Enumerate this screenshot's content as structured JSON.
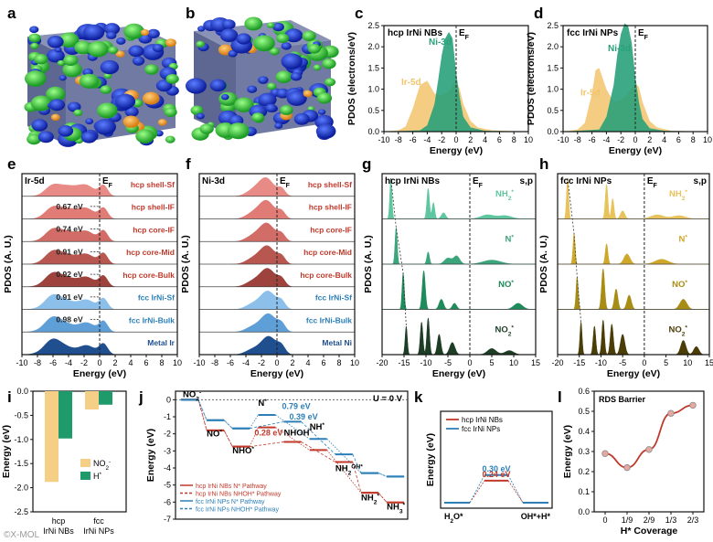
{
  "panel_letters": [
    "a",
    "b",
    "c",
    "d",
    "e",
    "f",
    "g",
    "h",
    "i",
    "j",
    "k",
    "l"
  ],
  "colors": {
    "ir5d": "#f2c46d",
    "ni3d": "#2aa17a",
    "red": "#c0392b",
    "blue": "#2c7fb8",
    "olive": "#8a7a10",
    "dkgreen": "#1d5e35"
  },
  "chart_data": [
    {
      "id": "c",
      "type": "area",
      "title": "hcp IrNi NBs",
      "ef_label": "E",
      "ef_sub": "F",
      "xlabel": "Energy (eV)",
      "ylabel": "PDOS (electrons/eV)",
      "xlim": [
        -10,
        10
      ],
      "ylim": [
        0,
        2.5
      ],
      "xticks": [
        -10,
        -8,
        -6,
        -4,
        -2,
        0,
        2,
        4,
        6,
        8,
        10
      ],
      "yticks": [
        0,
        0.5,
        1.0,
        1.5,
        2.0,
        2.5
      ],
      "ytick_labels": [
        "0.0",
        "0.5",
        "1.0",
        "1.5",
        "2.0",
        "2.5"
      ],
      "series": [
        {
          "name": "Ir-5d",
          "color": "#f2c46d",
          "x": [
            -10,
            -8,
            -7,
            -6,
            -5,
            -4,
            -3,
            -2,
            -1,
            0,
            0.5,
            1,
            2,
            3,
            5,
            10
          ],
          "y": [
            0,
            0.03,
            0.12,
            0.55,
            1.1,
            1.2,
            0.9,
            0.85,
            0.95,
            1.2,
            1.0,
            0.65,
            0.25,
            0.1,
            0.03,
            0
          ]
        },
        {
          "name": "Ni-3d",
          "color": "#2aa17a",
          "x": [
            -10,
            -5,
            -4,
            -3,
            -2.5,
            -2,
            -1.5,
            -1,
            -0.5,
            0,
            0.5,
            1,
            2,
            4,
            10
          ],
          "y": [
            0,
            0.03,
            0.15,
            0.65,
            1.2,
            1.8,
            2.2,
            2.35,
            2.2,
            1.4,
            0.8,
            0.35,
            0.1,
            0.02,
            0
          ]
        }
      ],
      "series_labels": [
        {
          "text": "Ni-3d",
          "x": -3.8,
          "y": 2.05
        },
        {
          "text": "Ir-5d",
          "x": -7.6,
          "y": 1.1
        }
      ]
    },
    {
      "id": "d",
      "type": "area",
      "title": "fcc IrNi NPs",
      "ef_label": "E",
      "ef_sub": "F",
      "xlabel": "Energy (eV)",
      "ylabel": "PDOS (electrons/eV)",
      "xlim": [
        -10,
        10
      ],
      "ylim": [
        0,
        2.5
      ],
      "xticks": [
        -10,
        -8,
        -6,
        -4,
        -2,
        0,
        2,
        4,
        6,
        8,
        10
      ],
      "yticks": [
        0,
        0.5,
        1.0,
        1.5,
        2.0,
        2.5
      ],
      "ytick_labels": [
        "0.0",
        "0.5",
        "1.0",
        "1.5",
        "2.0",
        "2.5"
      ],
      "series": [
        {
          "name": "Ir-5d",
          "color": "#f2c46d",
          "x": [
            -10,
            -8,
            -7,
            -6,
            -5.5,
            -5,
            -4,
            -3,
            -2,
            -1,
            0,
            0.5,
            1,
            2,
            3,
            5,
            10
          ],
          "y": [
            0,
            0.05,
            0.2,
            0.9,
            1.45,
            1.5,
            1.0,
            0.7,
            0.75,
            0.9,
            1.15,
            1.05,
            0.7,
            0.25,
            0.1,
            0.02,
            0
          ]
        },
        {
          "name": "Ni-3d",
          "color": "#2aa17a",
          "x": [
            -10,
            -5,
            -4,
            -3,
            -2.5,
            -2,
            -1.5,
            -1,
            -0.5,
            0,
            0.5,
            1,
            2,
            4,
            10
          ],
          "y": [
            0,
            0.05,
            0.35,
            1.1,
            1.8,
            2.3,
            2.55,
            2.5,
            2.1,
            1.3,
            0.7,
            0.3,
            0.08,
            0.02,
            0
          ]
        }
      ],
      "series_labels": [
        {
          "text": "Ni-3d",
          "x": -3.8,
          "y": 1.9
        },
        {
          "text": "Ir-5d",
          "x": -7.6,
          "y": 0.85
        }
      ]
    },
    {
      "id": "e",
      "type": "area",
      "title": "Ir-5d",
      "ef_label": "E",
      "ef_sub": "F",
      "xlabel": "Energy (eV)",
      "ylabel": "PDOS (A. U.)",
      "xlim": [
        -10,
        10
      ],
      "xticks": [
        -10,
        -8,
        -6,
        -4,
        -2,
        0,
        2,
        4,
        6,
        8,
        10
      ],
      "series": [
        {
          "name": "hcp shell-Sf",
          "color": "#e88a85"
        },
        {
          "name": "hcp shell-IF",
          "color": "#e07b76"
        },
        {
          "name": "hcp core-IF",
          "color": "#d26c66"
        },
        {
          "name": "hcp core-Mid",
          "color": "#b85650"
        },
        {
          "name": "hcp core-Bulk",
          "color": "#9e423e"
        },
        {
          "name": "fcc IrNi-Sf",
          "color": "#8cc0ea"
        },
        {
          "name": "fcc IrNi-Bulk",
          "color": "#5f9fd8"
        },
        {
          "name": "Metal Ir",
          "color": "#1f4f8e"
        }
      ],
      "gap_labels": [
        "0.67 eV",
        "0.74 eV",
        "0.91 eV",
        "0.92 eV",
        "0.91 eV",
        "0.98 eV"
      ]
    },
    {
      "id": "f",
      "type": "area",
      "title": "Ni-3d",
      "ef_label": "E",
      "ef_sub": "F",
      "xlabel": "Energy (eV)",
      "ylabel": "PDOS (A. U.)",
      "xlim": [
        -10,
        10
      ],
      "xticks": [
        -10,
        -8,
        -6,
        -4,
        -2,
        0,
        2,
        4,
        6,
        8,
        10
      ],
      "series": [
        {
          "name": "hcp shell-Sf",
          "color": "#e88a85"
        },
        {
          "name": "hcp shell-IF",
          "color": "#e07b76"
        },
        {
          "name": "hcp core-IF",
          "color": "#d26c66"
        },
        {
          "name": "hcp core-Mid",
          "color": "#b85650"
        },
        {
          "name": "hcp core-Bulk",
          "color": "#9e423e"
        },
        {
          "name": "fcc IrNi-Sf",
          "color": "#8cc0ea"
        },
        {
          "name": "fcc IrNi-Bulk",
          "color": "#5f9fd8"
        },
        {
          "name": "Metal Ni",
          "color": "#1f4f8e"
        }
      ]
    },
    {
      "id": "g",
      "type": "line",
      "title": "hcp IrNi NBs",
      "ef_label": "E",
      "ef_sub": "F",
      "corner_label": "s,p",
      "xlabel": "Energy (eV)",
      "ylabel": "PDOS (A. U.)",
      "xlim": [
        -20,
        15
      ],
      "xticks": [
        -20,
        -15,
        -10,
        -5,
        0,
        5,
        10,
        15
      ],
      "series": [
        {
          "name": "NH",
          "sub": "2",
          "sup": "*",
          "color": "#5fc79f"
        },
        {
          "name": "N",
          "sub": "",
          "sup": "*",
          "color": "#3ba57c"
        },
        {
          "name": "NO",
          "sub": "",
          "sup": "*",
          "color": "#1f8a5a"
        },
        {
          "name": "NO",
          "sub": "2",
          "sup": "*",
          "color": "#1d3d24"
        }
      ]
    },
    {
      "id": "h",
      "type": "line",
      "title": "fcc IrNi NPs",
      "ef_label": "E",
      "ef_sub": "F",
      "corner_label": "s,p",
      "xlabel": "Energy (eV)",
      "ylabel": "PDOS (A. U.)",
      "xlim": [
        -20,
        15
      ],
      "xticks": [
        -20,
        -15,
        -10,
        -5,
        0,
        5,
        10,
        15
      ],
      "series": [
        {
          "name": "NH",
          "sub": "2",
          "sup": "*",
          "color": "#e8c25a"
        },
        {
          "name": "N",
          "sub": "",
          "sup": "*",
          "color": "#cfa82a"
        },
        {
          "name": "NO",
          "sub": "",
          "sup": "*",
          "color": "#a88d15"
        },
        {
          "name": "NO",
          "sub": "2",
          "sup": "*",
          "color": "#4a3d08"
        }
      ]
    },
    {
      "id": "i",
      "type": "bar",
      "categories": [
        "hcp IrNi NBs",
        "fcc IrNi NPs"
      ],
      "category_lines": [
        [
          "hcp",
          "IrNi NBs"
        ],
        [
          "fcc",
          "IrNi NPs"
        ]
      ],
      "series": [
        {
          "name": "NO",
          "sub": "2",
          "sup": "-",
          "color": "#f6cf86",
          "values": [
            -1.88,
            -0.38
          ]
        },
        {
          "name": "H",
          "sub": "",
          "sup": "*",
          "color": "#1f9a6a",
          "values": [
            -0.98,
            -0.28
          ]
        }
      ],
      "ylabel": "Energy (eV)",
      "ylim": [
        -2.5,
        0
      ],
      "yticks": [
        0,
        -0.5,
        -1.0,
        -1.5,
        -2.0,
        -2.5
      ],
      "ytick_labels": [
        "0.0",
        "-0.5",
        "-1.0",
        "-1.5",
        "-2.0",
        "-2.5"
      ]
    },
    {
      "id": "j",
      "type": "line",
      "title": "U = 0 V",
      "ylabel": "Energy (eV)",
      "ylim": [
        -7,
        0.5
      ],
      "yticks": [
        0,
        -1,
        -2,
        -3,
        -4,
        -5,
        -6,
        -7
      ],
      "states": [
        {
          "label": "NO",
          "sub": "2",
          "sup": "-"
        },
        {
          "label": "NO",
          "sub": "",
          "sup": "*"
        },
        {
          "label": "NHO",
          "sub": "",
          "sup": "*"
        },
        {
          "label": "N",
          "sub": "",
          "sup": "*"
        },
        {
          "label": "NHOH",
          "sub": "",
          "sup": "*"
        },
        {
          "label": "NH",
          "sub": "",
          "sup": "*"
        },
        {
          "label": "NH",
          "sub": "2",
          "sup": "OH*"
        },
        {
          "label": "NH",
          "sub": "2",
          "sup": "*"
        },
        {
          "label": "NH",
          "sub": "3",
          "sup": "*"
        }
      ],
      "series": [
        {
          "name": "hcp IrNi NBs N* Pathway",
          "color": "#c0392b",
          "dash": false,
          "steps": [
            [
              0,
              0
            ],
            [
              1,
              -1.8
            ],
            [
              2,
              -2.75
            ],
            [
              3,
              -1.62
            ],
            [
              5,
              -2.95
            ],
            [
              7,
              -5.45
            ],
            [
              8,
              -6.02
            ]
          ]
        },
        {
          "name": "hcp IrNi NBs NHOH* Pathway",
          "color": "#c0392b",
          "dash": true,
          "steps": [
            [
              0,
              0
            ],
            [
              1,
              -1.8
            ],
            [
              2,
              -2.75
            ],
            [
              4,
              -2.47
            ],
            [
              6,
              -3.65
            ],
            [
              7,
              -5.45
            ],
            [
              8,
              -6.02
            ]
          ]
        },
        {
          "name": "fcc IrNi NPs N* Pathway",
          "color": "#2c7fb8",
          "dash": false,
          "steps": [
            [
              0,
              0
            ],
            [
              1,
              -1.2
            ],
            [
              2,
              -1.68
            ],
            [
              3,
              -0.89
            ],
            [
              5,
              -2.3
            ],
            [
              7,
              -4.3
            ],
            [
              8,
              -4.5
            ]
          ]
        },
        {
          "name": "fcc IrNi NPs NHOH* Pathway",
          "color": "#2c7fb8",
          "dash": true,
          "steps": [
            [
              0,
              0
            ],
            [
              1,
              -1.2
            ],
            [
              2,
              -1.68
            ],
            [
              4,
              -1.29
            ],
            [
              6,
              -3.2
            ],
            [
              7,
              -4.3
            ],
            [
              8,
              -4.5
            ]
          ]
        }
      ],
      "barrier_labels": [
        {
          "text": "0.79 eV",
          "color": "#2c7fb8"
        },
        {
          "text": "0.39 eV",
          "color": "#2c7fb8"
        },
        {
          "text": "0.28 eV",
          "color": "#c0392b"
        }
      ]
    },
    {
      "id": "k",
      "type": "line",
      "ylabel": "Energy (eV)",
      "states": [
        {
          "label": "H",
          "sub": "2",
          "sup": "",
          "tail": "O*"
        },
        {
          "label": "OH*+H*",
          "sub": "",
          "sup": "",
          "tail": ""
        }
      ],
      "series": [
        {
          "name": "hcp IrNi NBs",
          "color": "#c0392b",
          "barrier": 0.24
        },
        {
          "name": "fcc IrNi NPs",
          "color": "#2c7fb8",
          "barrier": 0.3
        }
      ],
      "barrier_labels": [
        "0.30 eV",
        "0.24 eV"
      ]
    },
    {
      "id": "l",
      "type": "scatter",
      "title": "RDS Barrier",
      "xlabel": "H* Coverage",
      "ylabel": "Energy (eV)",
      "categories": [
        "0",
        "1/9",
        "2/9",
        "1/3",
        "2/3"
      ],
      "values": [
        0.29,
        0.22,
        0.31,
        0.49,
        0.53
      ],
      "ylim": [
        0,
        0.6
      ],
      "yticks": [
        0,
        0.1,
        0.2,
        0.3,
        0.4,
        0.5,
        0.6
      ],
      "ytick_labels": [
        "0.0",
        "0.1",
        "0.2",
        "0.3",
        "0.4",
        "0.5",
        "0.6"
      ],
      "color": "#c0392b"
    }
  ],
  "footer_watermark": "©X-MOL"
}
